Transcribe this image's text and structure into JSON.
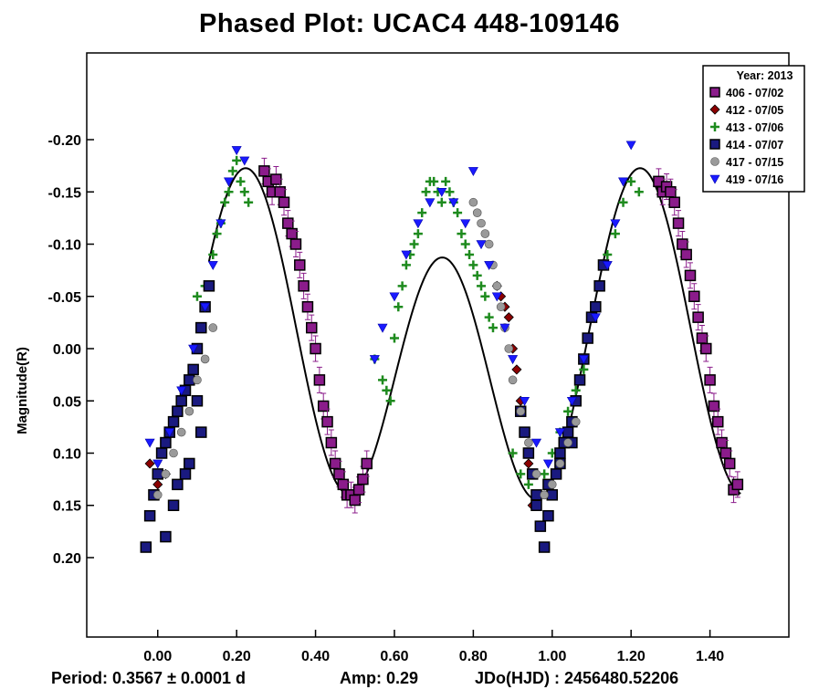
{
  "chart_data": {
    "type": "scatter",
    "title": "Phased Plot: UCAC4 448-109146",
    "xlabel": "",
    "ylabel": "Magnitude(R)",
    "xlim": [
      -0.18,
      1.6
    ],
    "ylim": [
      0.276,
      -0.283
    ],
    "y_inverted": true,
    "grid": false,
    "x_ticks": [
      {
        "value": 0.0,
        "label": "0.00"
      },
      {
        "value": 0.2,
        "label": "0.20"
      },
      {
        "value": 0.4,
        "label": "0.40"
      },
      {
        "value": 0.6,
        "label": "0.60"
      },
      {
        "value": 0.8,
        "label": "0.80"
      },
      {
        "value": 1.0,
        "label": "1.00"
      },
      {
        "value": 1.2,
        "label": "1.20"
      },
      {
        "value": 1.4,
        "label": "1.40"
      }
    ],
    "y_ticks": [
      {
        "value": -0.2,
        "label": "-0.20"
      },
      {
        "value": -0.15,
        "label": "-0.15"
      },
      {
        "value": -0.1,
        "label": "-0.10"
      },
      {
        "value": -0.05,
        "label": "-0.05"
      },
      {
        "value": 0.0,
        "label": "0.00"
      },
      {
        "value": 0.05,
        "label": "0.05"
      },
      {
        "value": 0.1,
        "label": "0.10"
      },
      {
        "value": 0.15,
        "label": "0.15"
      },
      {
        "value": 0.2,
        "label": "0.20"
      }
    ],
    "legend": {
      "placement": "top-right",
      "title": "Year: 2013",
      "entries": [
        {
          "label": "406 - 07/02",
          "marker": "square",
          "color": "#8b1c8b"
        },
        {
          "label": "412 - 07/05",
          "marker": "diamond",
          "color": "#8b0000"
        },
        {
          "label": "413 - 07/06",
          "marker": "plus",
          "color": "#1e8b1e"
        },
        {
          "label": "414 - 07/07",
          "marker": "square",
          "color": "#1a1a80"
        },
        {
          "label": "417 - 07/15",
          "marker": "circle",
          "color": "#9a9a9a"
        },
        {
          "label": "419 - 07/16",
          "marker": "triangle-down",
          "color": "#1a1aff"
        }
      ]
    },
    "series": [
      {
        "name": "406 - 07/02",
        "marker": "square",
        "color": "#8b1c8b",
        "x": [
          0.27,
          0.28,
          0.29,
          0.3,
          0.31,
          0.32,
          0.33,
          0.34,
          0.35,
          0.36,
          0.37,
          0.38,
          0.39,
          0.4,
          0.41,
          0.42,
          0.43,
          0.44,
          0.45,
          0.46,
          0.47,
          0.48,
          0.49,
          0.5,
          0.51,
          0.52,
          0.53,
          1.27,
          1.28,
          1.29,
          1.3,
          1.31,
          1.32,
          1.33,
          1.34,
          1.35,
          1.36,
          1.37,
          1.38,
          1.39,
          1.4,
          1.41,
          1.42,
          1.43,
          1.44,
          1.45,
          1.46,
          1.47
        ],
        "y": [
          -0.17,
          -0.16,
          -0.15,
          -0.162,
          -0.15,
          -0.14,
          -0.12,
          -0.11,
          -0.1,
          -0.08,
          -0.06,
          -0.04,
          -0.02,
          0.0,
          0.03,
          0.055,
          0.07,
          0.09,
          0.11,
          0.12,
          0.13,
          0.14,
          0.14,
          0.145,
          0.135,
          0.125,
          0.11,
          -0.16,
          -0.15,
          -0.155,
          -0.15,
          -0.14,
          -0.12,
          -0.1,
          -0.09,
          -0.07,
          -0.05,
          -0.03,
          -0.01,
          0.0,
          0.03,
          0.055,
          0.07,
          0.09,
          0.1,
          0.11,
          0.135,
          0.13
        ]
      },
      {
        "name": "412 - 07/05",
        "marker": "diamond",
        "color": "#8b0000",
        "x": [
          -0.02,
          0.0,
          0.02,
          0.86,
          0.87,
          0.88,
          0.89,
          0.9,
          0.91,
          0.92,
          0.93,
          0.94,
          0.95,
          0.96
        ],
        "y": [
          0.11,
          0.13,
          0.12,
          -0.06,
          -0.05,
          -0.04,
          -0.03,
          0.0,
          0.02,
          0.05,
          0.08,
          0.11,
          0.15,
          0.14
        ]
      },
      {
        "name": "413 - 07/06",
        "marker": "plus",
        "color": "#1e8b1e",
        "x": [
          0.1,
          0.12,
          0.14,
          0.15,
          0.16,
          0.17,
          0.18,
          0.19,
          0.2,
          0.21,
          0.22,
          0.23,
          0.55,
          0.57,
          0.58,
          0.59,
          0.6,
          0.61,
          0.62,
          0.63,
          0.64,
          0.65,
          0.66,
          0.67,
          0.68,
          0.69,
          0.7,
          0.71,
          0.72,
          0.73,
          0.74,
          0.75,
          0.76,
          0.77,
          0.78,
          0.79,
          0.8,
          0.81,
          0.82,
          0.83,
          0.84,
          0.85,
          0.9,
          0.92,
          0.94,
          0.96,
          0.98,
          1.0,
          1.02,
          1.04,
          1.06,
          1.08,
          1.1,
          1.12,
          1.14,
          1.16,
          1.18,
          1.2,
          1.22
        ],
        "y": [
          -0.05,
          -0.06,
          -0.09,
          -0.11,
          -0.12,
          -0.14,
          -0.15,
          -0.17,
          -0.18,
          -0.16,
          -0.15,
          -0.14,
          0.01,
          0.03,
          0.04,
          0.05,
          -0.01,
          -0.04,
          -0.06,
          -0.08,
          -0.09,
          -0.1,
          -0.11,
          -0.13,
          -0.15,
          -0.16,
          -0.16,
          -0.15,
          -0.14,
          -0.16,
          -0.15,
          -0.14,
          -0.13,
          -0.11,
          -0.1,
          -0.09,
          -0.08,
          -0.07,
          -0.06,
          -0.05,
          -0.03,
          -0.02,
          0.1,
          0.12,
          0.13,
          0.14,
          0.12,
          0.1,
          0.08,
          0.06,
          0.04,
          0.02,
          -0.03,
          -0.06,
          -0.09,
          -0.11,
          -0.14,
          -0.16,
          -0.15
        ]
      },
      {
        "name": "414 - 07/07",
        "marker": "square",
        "color": "#1a1a80",
        "x": [
          -0.03,
          -0.02,
          -0.01,
          0.0,
          0.01,
          0.02,
          0.03,
          0.04,
          0.05,
          0.06,
          0.07,
          0.08,
          0.09,
          0.1,
          0.11,
          0.12,
          0.13,
          0.02,
          0.05,
          0.08,
          0.11,
          0.04,
          0.07,
          0.1,
          0.92,
          0.93,
          0.94,
          0.95,
          0.96,
          0.97,
          0.98,
          0.99,
          1.0,
          1.01,
          1.02,
          1.03,
          1.04,
          1.05,
          1.06,
          1.07,
          1.08,
          1.09,
          1.1,
          1.11,
          1.12,
          1.13,
          0.96,
          0.99,
          1.02,
          1.05
        ],
        "y": [
          0.19,
          0.16,
          0.14,
          0.12,
          0.1,
          0.09,
          0.08,
          0.07,
          0.06,
          0.05,
          0.04,
          0.03,
          0.02,
          0.0,
          -0.02,
          -0.04,
          -0.06,
          0.18,
          0.13,
          0.11,
          0.08,
          0.15,
          0.12,
          0.05,
          0.06,
          0.08,
          0.1,
          0.12,
          0.14,
          0.17,
          0.19,
          0.16,
          0.14,
          0.12,
          0.1,
          0.09,
          0.08,
          0.07,
          0.05,
          0.03,
          0.01,
          -0.01,
          -0.03,
          -0.04,
          -0.06,
          -0.08,
          0.15,
          0.13,
          0.11,
          0.09
        ]
      },
      {
        "name": "417 - 07/15",
        "marker": "circle",
        "color": "#9a9a9a",
        "x": [
          0.0,
          0.02,
          0.04,
          0.06,
          0.08,
          0.1,
          0.12,
          0.14,
          0.8,
          0.81,
          0.82,
          0.83,
          0.84,
          0.85,
          0.86,
          0.87,
          0.88,
          0.89,
          0.9,
          0.92,
          0.94,
          0.96,
          0.98,
          1.0,
          1.02,
          1.04,
          1.06
        ],
        "y": [
          0.14,
          0.12,
          0.1,
          0.08,
          0.06,
          0.03,
          0.01,
          -0.02,
          -0.14,
          -0.13,
          -0.12,
          -0.11,
          -0.1,
          -0.08,
          -0.06,
          -0.04,
          -0.02,
          0.0,
          0.03,
          0.06,
          0.09,
          0.12,
          0.14,
          0.13,
          0.11,
          0.09,
          0.07
        ]
      },
      {
        "name": "419 - 07/16",
        "marker": "triangle-down",
        "color": "#1a1aff",
        "x": [
          -0.02,
          0.0,
          0.03,
          0.06,
          0.09,
          0.12,
          0.14,
          0.16,
          0.18,
          0.2,
          0.22,
          0.55,
          0.57,
          0.6,
          0.63,
          0.66,
          0.69,
          0.72,
          0.75,
          0.78,
          0.8,
          0.82,
          0.84,
          0.86,
          0.88,
          0.9,
          0.93,
          0.96,
          0.99,
          1.02,
          1.05,
          1.08,
          1.11,
          1.14,
          1.16,
          1.18,
          1.2
        ],
        "y": [
          0.09,
          0.11,
          0.08,
          0.04,
          0.0,
          -0.04,
          -0.08,
          -0.12,
          -0.16,
          -0.19,
          -0.18,
          0.01,
          -0.02,
          -0.05,
          -0.09,
          -0.12,
          -0.14,
          -0.15,
          -0.14,
          -0.12,
          -0.17,
          -0.1,
          -0.08,
          -0.05,
          -0.02,
          0.01,
          0.05,
          0.09,
          0.11,
          0.08,
          0.05,
          0.01,
          -0.03,
          -0.08,
          -0.12,
          -0.16,
          -0.195
        ]
      }
    ],
    "fit_curve": {
      "description": "fitted light curve",
      "mean_mag": 0.0,
      "period_phase": 0.5
    }
  },
  "footer": {
    "period": "Period: 0.3567 ± 0.0001 d",
    "amp": "Amp: 0.29",
    "jdo": "JDo(HJD) :  2456480.52206"
  },
  "colors": {
    "axis": "#000000",
    "curve": "#000000",
    "errorbar": "#8b1c8b"
  }
}
